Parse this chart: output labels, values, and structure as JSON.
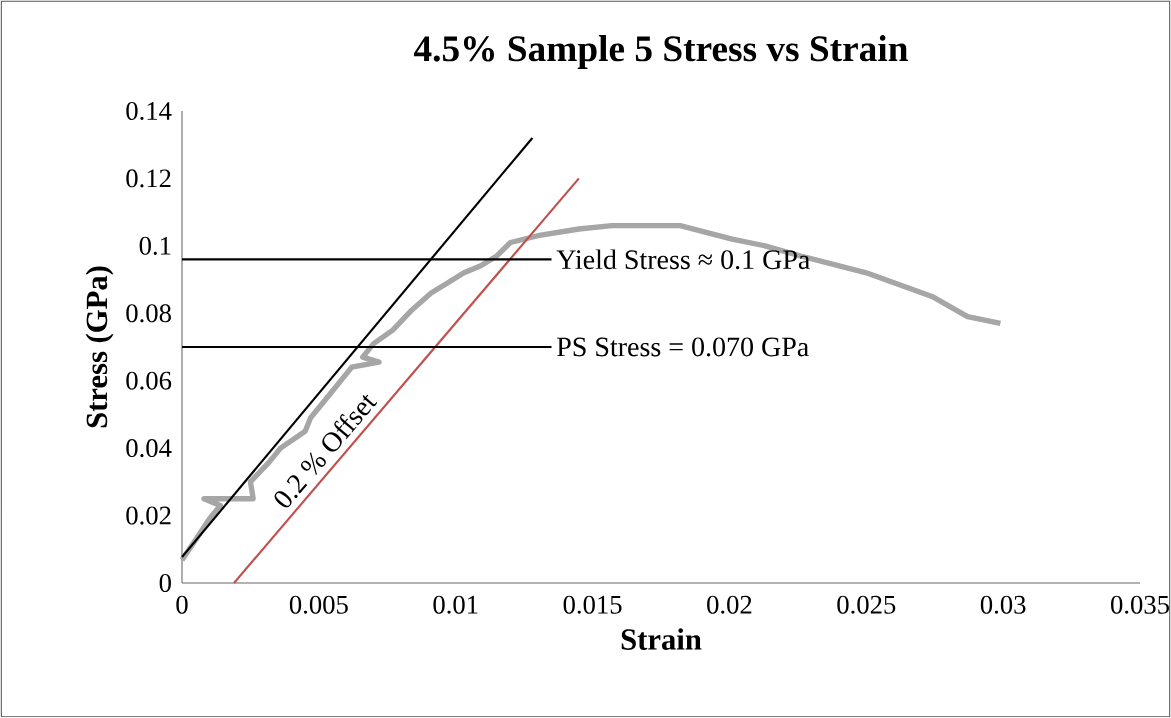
{
  "chart_data": {
    "type": "line",
    "title": "4.5% Sample 5 Stress vs Strain",
    "xlabel": "Strain",
    "ylabel": "Stress (GPa)",
    "xlim": [
      0,
      0.035
    ],
    "ylim": [
      0,
      0.14
    ],
    "xticks": [
      0,
      0.005,
      0.01,
      0.015,
      0.02,
      0.025,
      0.03,
      0.035
    ],
    "yticks": [
      0,
      0.02,
      0.04,
      0.06,
      0.08,
      0.1,
      0.12,
      0.14
    ],
    "marker": "none",
    "grid": false,
    "series": [
      {
        "color": "#a6a6a6",
        "x": [
          0,
          0.0005,
          0.001,
          0.0014,
          0.0008,
          0.0026,
          0.0025,
          0.0032,
          0.0036,
          0.0045,
          0.0047,
          0.0054,
          0.0059,
          0.0062,
          0.0072,
          0.0066,
          0.007,
          0.0077,
          0.0084,
          0.0091,
          0.0097,
          0.0103,
          0.0109,
          0.0115,
          0.012,
          0.013,
          0.0145,
          0.0157,
          0.0182,
          0.0201,
          0.0213,
          0.0226,
          0.025,
          0.0274,
          0.0287,
          0.0299
        ],
        "values": [
          0.0068,
          0.0128,
          0.019,
          0.023,
          0.025,
          0.025,
          0.03,
          0.036,
          0.04,
          0.045,
          0.049,
          0.056,
          0.061,
          0.064,
          0.0655,
          0.067,
          0.071,
          0.075,
          0.081,
          0.086,
          0.089,
          0.092,
          0.094,
          0.097,
          0.101,
          0.103,
          0.105,
          0.106,
          0.106,
          0.102,
          0.1,
          0.097,
          0.092,
          0.085,
          0.079,
          0.077
        ]
      },
      {
        "color": "#000000",
        "x": [
          0,
          0.0128
        ],
        "values": [
          0.0077,
          0.132
        ]
      },
      {
        "color": "#c0504d",
        "x": [
          0.0019,
          0.0145
        ],
        "values": [
          0,
          0.12
        ]
      },
      {
        "color": "#000000",
        "x": [
          0,
          0.0135
        ],
        "values": [
          0.096,
          0.096
        ]
      },
      {
        "color": "#000000",
        "x": [
          0,
          0.0135
        ],
        "values": [
          0.07,
          0.07
        ]
      }
    ],
    "annotations": [
      "Yield Stress ≈ 0.1 GPa",
      "PS Stress = 0.070 GPa",
      "0.2 % Offset"
    ]
  }
}
